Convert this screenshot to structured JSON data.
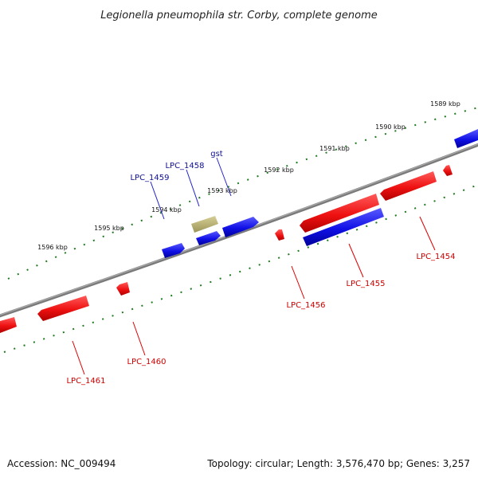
{
  "title": "Legionella pneumophila str. Corby, complete genome",
  "ruler": {
    "tick_labels": [
      "1589 kbp",
      "1590 kbp",
      "1591 kbp",
      "1592 kbp",
      "1593 kbp",
      "1594 kbp",
      "1595 kbp",
      "1596 kbp"
    ]
  },
  "genes": {
    "forward_labels": [
      "LPC_1459",
      "LPC_1458",
      "gst"
    ],
    "reverse_labels": [
      "LPC_1454",
      "LPC_1455",
      "LPC_1456",
      "LPC_1460",
      "LPC_1461"
    ]
  },
  "colors": {
    "forward_gene": "#1010e6",
    "reverse_gene": "#ee1111",
    "other_gene": "#b5ad6e",
    "backbone": "#808080",
    "ruler": "#1f7a1f",
    "forward_label": "#101090",
    "reverse_label": "#cc0000"
  },
  "footer": {
    "accession": "Accession: NC_009494",
    "summary": "Topology: circular; Length: 3,576,470 bp; Genes: 3,257"
  }
}
